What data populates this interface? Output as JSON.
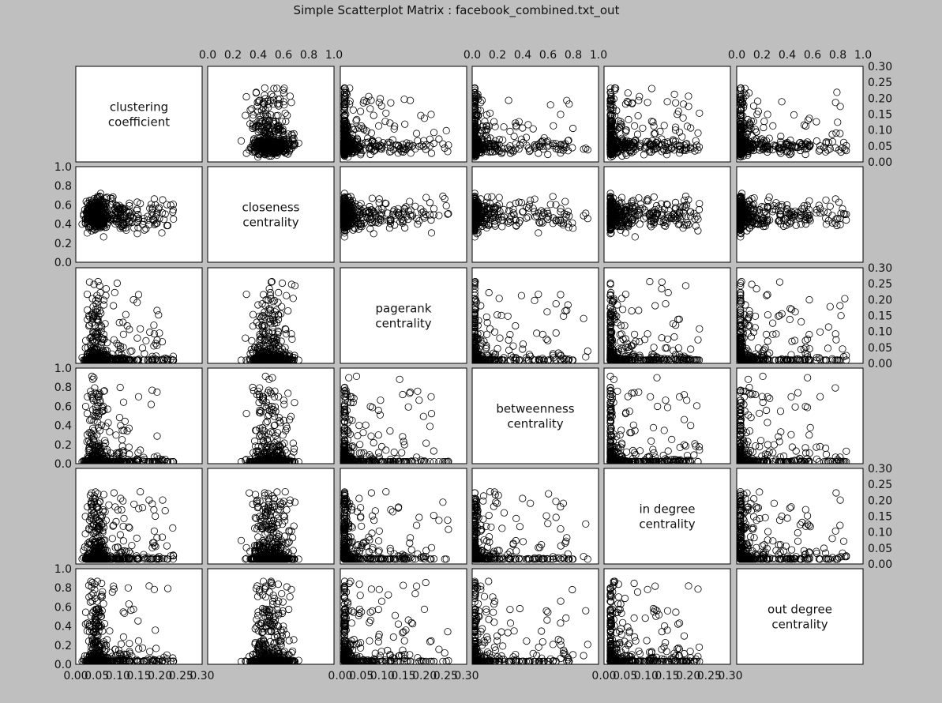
{
  "figure": {
    "title": "Simple Scatterplot Matrix : facebook_combined.txt_out"
  },
  "chart_data": {
    "type": "scatter",
    "title": "Simple Scatterplot Matrix : facebook_combined.txt_out",
    "variables": [
      {
        "key": "clustering",
        "lines": [
          "clustering",
          "coefficient"
        ],
        "range": [
          0,
          0.3
        ],
        "ticks": [
          "0.00",
          "0.05",
          "0.10",
          "0.15",
          "0.20",
          "0.25",
          "0.30"
        ]
      },
      {
        "key": "closeness",
        "lines": [
          "closeness",
          "centrality"
        ],
        "range": [
          0,
          1.0
        ],
        "ticks": [
          "0.0",
          "0.2",
          "0.4",
          "0.6",
          "0.8",
          "1.0"
        ]
      },
      {
        "key": "pagerank",
        "lines": [
          "pagerank",
          "centrality"
        ],
        "range": [
          0,
          0.3
        ],
        "ticks": [
          "0.00",
          "0.05",
          "0.10",
          "0.15",
          "0.20",
          "0.25",
          "0.30"
        ]
      },
      {
        "key": "betweenness",
        "lines": [
          "betweenness",
          "centrality"
        ],
        "range": [
          0,
          1.0
        ],
        "ticks": [
          "0.0",
          "0.2",
          "0.4",
          "0.6",
          "0.8",
          "1.0"
        ]
      },
      {
        "key": "in_degree",
        "lines": [
          "in degree",
          "centrality"
        ],
        "range": [
          0,
          0.3
        ],
        "ticks": [
          "0.00",
          "0.05",
          "0.10",
          "0.15",
          "0.20",
          "0.25",
          "0.30"
        ]
      },
      {
        "key": "out_degree",
        "lines": [
          "out degree",
          "centrality"
        ],
        "range": [
          0,
          1.0
        ],
        "ticks": [
          "0.0",
          "0.2",
          "0.4",
          "0.6",
          "0.8",
          "1.0"
        ]
      }
    ],
    "top_tick_labels": [
      "0.0",
      "0.2",
      "0.4",
      "0.6",
      "0.8",
      "1.0"
    ],
    "bottom_tick_labels": [
      "0.00",
      "0.05",
      "0.10",
      "0.15",
      "0.20",
      "0.25",
      "0.30"
    ],
    "right_tick_labels": [
      "0.00",
      "0.05",
      "0.10",
      "0.15",
      "0.20",
      "0.25",
      "0.30"
    ],
    "left_tick_labels": [
      "0.0",
      "0.2",
      "0.4",
      "0.6",
      "0.8",
      "1.0"
    ],
    "marker": "open-circle",
    "grid": false,
    "legend": "none",
    "colors": {
      "background": "#bfbfbf",
      "panel": "#ffffff",
      "marker": "#000000"
    }
  }
}
